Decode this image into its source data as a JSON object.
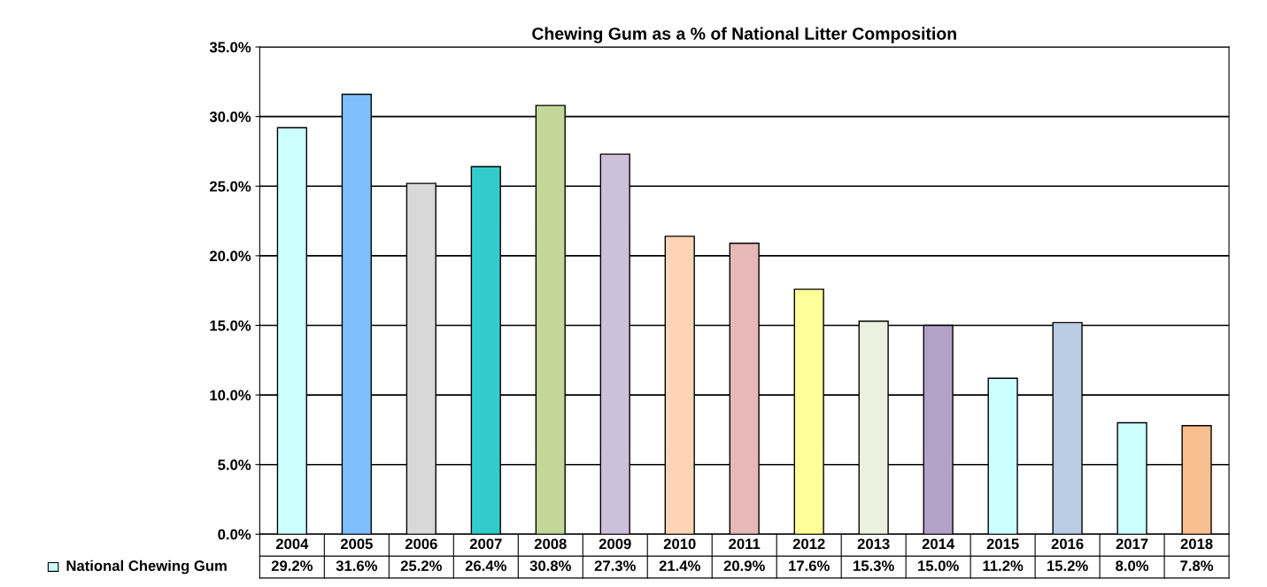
{
  "chart_data": {
    "type": "bar",
    "title": "Chewing Gum as a % of National Litter Composition",
    "categories": [
      "2004",
      "2005",
      "2006",
      "2007",
      "2008",
      "2009",
      "2010",
      "2011",
      "2012",
      "2013",
      "2014",
      "2015",
      "2016",
      "2017",
      "2018"
    ],
    "series": [
      {
        "name": "National Chewing Gum",
        "color": "#ccffff",
        "colors": [
          "#ccffff",
          "#80bfff",
          "#d9d9d9",
          "#33cccc",
          "#c4d79b",
          "#ccc0da",
          "#fcd5b4",
          "#e6b8b7",
          "#ffff99",
          "#ebf1de",
          "#b3a2c7",
          "#ccffff",
          "#b8cce4",
          "#ccffff",
          "#fabf8f"
        ],
        "values": [
          29.2,
          31.6,
          25.2,
          26.4,
          30.8,
          27.3,
          21.4,
          20.9,
          17.6,
          15.3,
          15.0,
          11.2,
          15.2,
          8.0,
          7.8
        ],
        "value_labels": [
          "29.2%",
          "31.6%",
          "25.2%",
          "26.4%",
          "30.8%",
          "27.3%",
          "21.4%",
          "20.9%",
          "17.6%",
          "15.3%",
          "15.0%",
          "11.2%",
          "15.2%",
          "8.0%",
          "7.8%"
        ]
      }
    ],
    "ylim": [
      0,
      35
    ],
    "yticks": [
      {
        "value": 0,
        "label": "0.0%"
      },
      {
        "value": 5,
        "label": "5.0%"
      },
      {
        "value": 10,
        "label": "10.0%"
      },
      {
        "value": 15,
        "label": "15.0%"
      },
      {
        "value": 20,
        "label": "20.0%"
      },
      {
        "value": 25,
        "label": "25.0%"
      },
      {
        "value": 30,
        "label": "30.0%"
      },
      {
        "value": 35,
        "label": "35.0%"
      }
    ],
    "grid": "y",
    "legend": "bottom"
  }
}
